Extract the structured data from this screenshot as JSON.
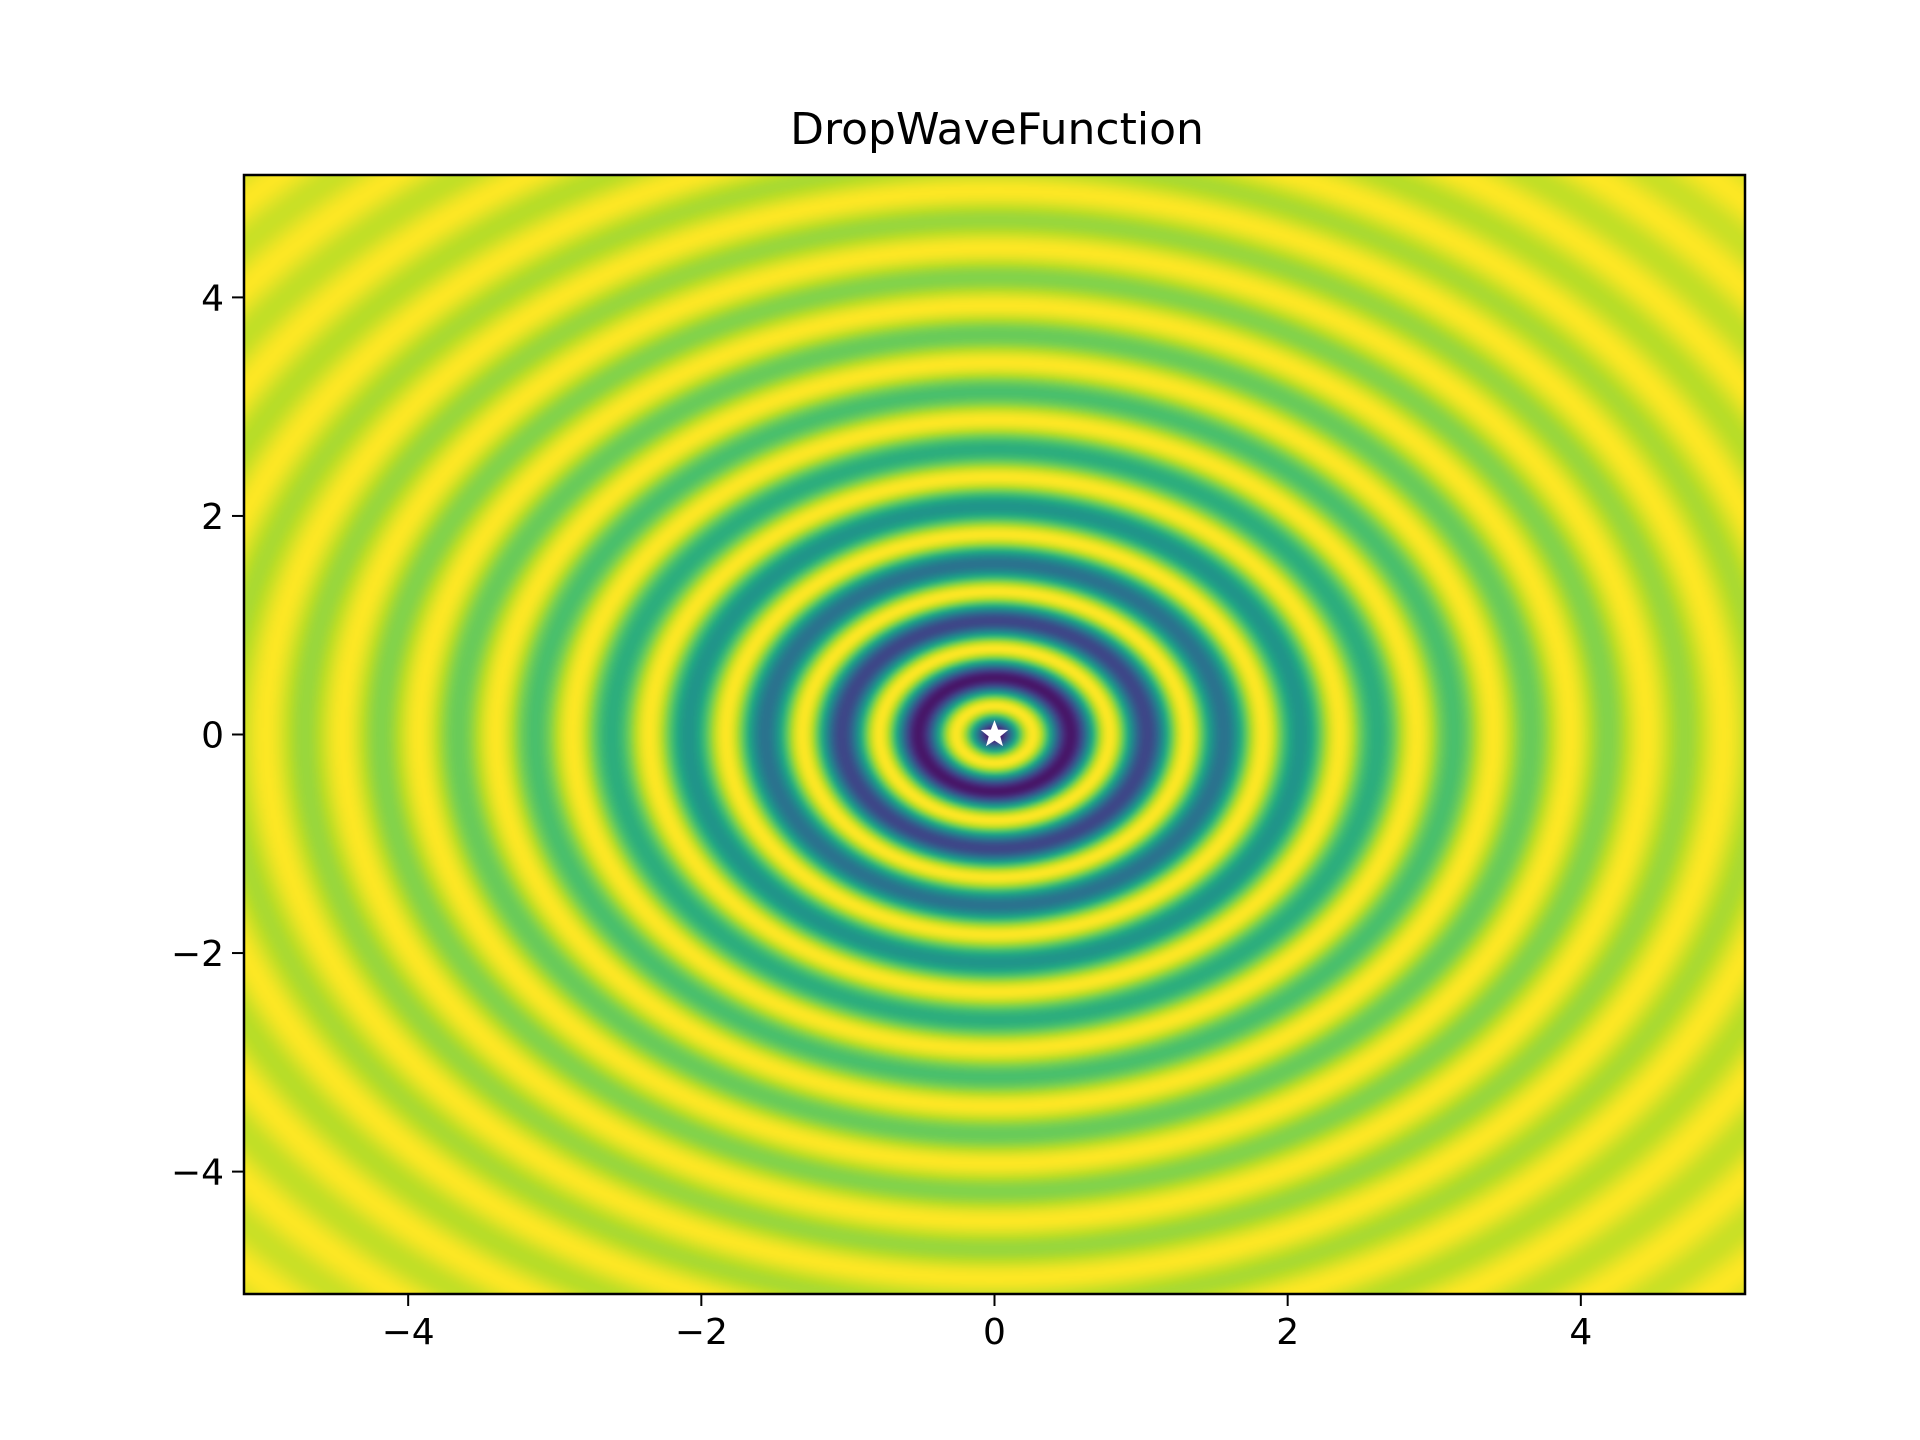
{
  "chart_data": {
    "type": "heatmap",
    "title": "DropWaveFunction",
    "xlabel": "",
    "ylabel": "",
    "function": "f(x,y) = -(1 + cos(12*sqrt(x^2+y^2))) / (0.5*(x^2+y^2) + 2)",
    "xlim": [
      -5.12,
      5.12
    ],
    "ylim": [
      -5.12,
      5.12
    ],
    "x_ticks": [
      -4,
      -2,
      0,
      2,
      4
    ],
    "y_ticks": [
      -4,
      -2,
      0,
      2,
      4
    ],
    "x_tick_labels": [
      "−4",
      "−2",
      "0",
      "2",
      "4"
    ],
    "y_tick_labels": [
      "−4",
      "−2",
      "0",
      "2",
      "4"
    ],
    "colormap": "viridis",
    "grid": false,
    "markers": [
      {
        "x": 0,
        "y": 0,
        "symbol": "star",
        "color": "#ffffff"
      }
    ]
  }
}
